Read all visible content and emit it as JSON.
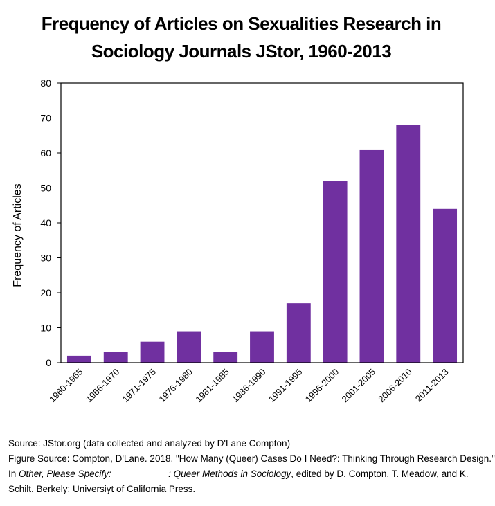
{
  "chart_data": {
    "type": "bar",
    "title_lines": [
      "Frequency of Articles on Sexualities Research in",
      "Sociology Journals JStor, 1960-2013"
    ],
    "categories": [
      "1960-1965",
      "1966-1970",
      "1971-1975",
      "1976-1980",
      "1981-1985",
      "1986-1990",
      "1991-1995",
      "1996-2000",
      "2001-2005",
      "2006-2010",
      "2011-2013"
    ],
    "values": [
      2,
      3,
      6,
      9,
      3,
      9,
      17,
      52,
      61,
      68,
      44
    ],
    "xlabel": "",
    "ylabel": "Frequency of Articles",
    "ylim": [
      0,
      80
    ],
    "yticks": [
      0,
      10,
      20,
      30,
      40,
      50,
      60,
      70,
      80
    ],
    "ytick_labels": [
      "0",
      "10",
      "20",
      "30",
      "40",
      "50",
      "60",
      "70",
      "80"
    ],
    "grid": false,
    "bar_color": "#7030a0"
  },
  "footer": {
    "source": "Source: JStor.org (data collected and analyzed by D'Lane Compton)",
    "figure_source": "Figure Source: Compton, D'Lane. 2018. \"How Many (Queer) Cases Do I Need?: Thinking Through Research Design.\"",
    "in_prefix": "In ",
    "book_title": "Other, Please Specify:___________: Queer Methods in Sociology",
    "edited_by": ", edited by D. Compton, T. Meadow, and K.",
    "publisher": "Schilt. Berkely: Universiyt of California Press."
  }
}
